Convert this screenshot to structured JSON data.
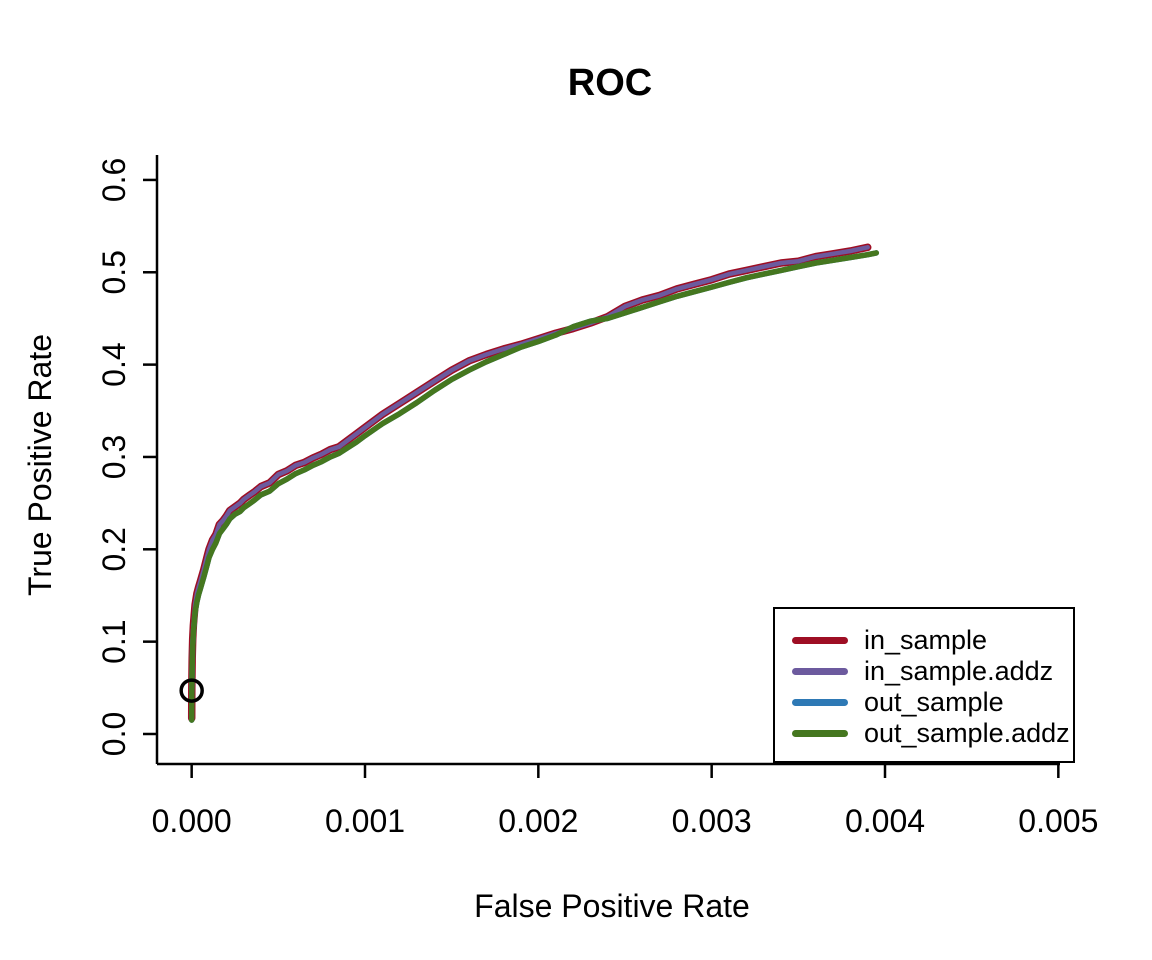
{
  "figure": {
    "background": "#ffffff",
    "text_color": "#000000"
  },
  "chart_data": {
    "type": "line",
    "title": "ROC",
    "xlabel": "False Positive Rate",
    "ylabel": "True Positive Rate",
    "grid": false,
    "xlim": [
      -0.0002,
      0.0052
    ],
    "ylim": [
      -0.0325,
      0.627
    ],
    "xticks": {
      "values": [
        0.0,
        0.001,
        0.002,
        0.003,
        0.004,
        0.005
      ],
      "labels": [
        "0.000",
        "0.001",
        "0.002",
        "0.003",
        "0.004",
        "0.005"
      ]
    },
    "yticks": {
      "values": [
        0.0,
        0.1,
        0.2,
        0.3,
        0.4,
        0.5,
        0.6
      ],
      "labels": [
        "0.0",
        "0.1",
        "0.2",
        "0.3",
        "0.4",
        "0.5",
        "0.6"
      ]
    },
    "legend": {
      "position": "bottomright",
      "border": true
    },
    "marker": {
      "x": 0.0,
      "y": 0.047,
      "shape": "open-circle",
      "color": "#000000"
    },
    "series": [
      {
        "name": "in_sample",
        "color": "#9E0E24",
        "points": [
          [
            0.0,
            0.017
          ],
          [
            1e-06,
            0.05
          ],
          [
            3e-06,
            0.082
          ],
          [
            6e-06,
            0.103
          ],
          [
            1e-05,
            0.118
          ],
          [
            1.5e-05,
            0.13
          ],
          [
            2e-05,
            0.14
          ],
          [
            3e-05,
            0.152
          ],
          [
            4e-05,
            0.159
          ],
          [
            5e-05,
            0.165
          ],
          [
            7e-05,
            0.178
          ],
          [
            9e-05,
            0.193
          ],
          [
            0.0001,
            0.2
          ],
          [
            0.00012,
            0.21
          ],
          [
            0.00014,
            0.216
          ],
          [
            0.00016,
            0.227
          ],
          [
            0.00018,
            0.231
          ],
          [
            0.0002,
            0.236
          ],
          [
            0.00022,
            0.242
          ],
          [
            0.00025,
            0.246
          ],
          [
            0.00028,
            0.25
          ],
          [
            0.0003,
            0.254
          ],
          [
            0.00033,
            0.258
          ],
          [
            0.00036,
            0.262
          ],
          [
            0.0004,
            0.268
          ],
          [
            0.00045,
            0.272
          ],
          [
            0.0005,
            0.281
          ],
          [
            0.00055,
            0.285
          ],
          [
            0.0006,
            0.291
          ],
          [
            0.00065,
            0.294
          ],
          [
            0.0007,
            0.299
          ],
          [
            0.00075,
            0.303
          ],
          [
            0.0008,
            0.308
          ],
          [
            0.00085,
            0.311
          ],
          [
            0.0009,
            0.318
          ],
          [
            0.00095,
            0.325
          ],
          [
            0.001,
            0.332
          ],
          [
            0.0011,
            0.346
          ],
          [
            0.0012,
            0.358
          ],
          [
            0.0013,
            0.37
          ],
          [
            0.0014,
            0.382
          ],
          [
            0.0015,
            0.394
          ],
          [
            0.0016,
            0.404
          ],
          [
            0.0017,
            0.411
          ],
          [
            0.0018,
            0.417
          ],
          [
            0.0019,
            0.422
          ],
          [
            0.002,
            0.428
          ],
          [
            0.0021,
            0.434
          ],
          [
            0.0022,
            0.439
          ],
          [
            0.0023,
            0.445
          ],
          [
            0.0024,
            0.452
          ],
          [
            0.0025,
            0.463
          ],
          [
            0.0026,
            0.47
          ],
          [
            0.0027,
            0.475
          ],
          [
            0.0028,
            0.482
          ],
          [
            0.0029,
            0.487
          ],
          [
            0.003,
            0.492
          ],
          [
            0.0031,
            0.498
          ],
          [
            0.0032,
            0.502
          ],
          [
            0.0033,
            0.506
          ],
          [
            0.0034,
            0.51
          ],
          [
            0.0035,
            0.512
          ],
          [
            0.0036,
            0.517
          ],
          [
            0.0037,
            0.52
          ],
          [
            0.0038,
            0.523
          ],
          [
            0.0039,
            0.527
          ]
        ]
      },
      {
        "name": "in_sample.addz",
        "color": "#6C5A9E",
        "points": [
          [
            0.0,
            0.017
          ],
          [
            1e-06,
            0.05
          ],
          [
            3e-06,
            0.082
          ],
          [
            6e-06,
            0.103
          ],
          [
            1e-05,
            0.118
          ],
          [
            1.5e-05,
            0.13
          ],
          [
            2e-05,
            0.14
          ],
          [
            3e-05,
            0.152
          ],
          [
            4e-05,
            0.159
          ],
          [
            5e-05,
            0.165
          ],
          [
            7e-05,
            0.178
          ],
          [
            9e-05,
            0.193
          ],
          [
            0.0001,
            0.2
          ],
          [
            0.00012,
            0.21
          ],
          [
            0.00014,
            0.216
          ],
          [
            0.00016,
            0.227
          ],
          [
            0.00018,
            0.231
          ],
          [
            0.0002,
            0.236
          ],
          [
            0.00022,
            0.242
          ],
          [
            0.00025,
            0.246
          ],
          [
            0.00028,
            0.25
          ],
          [
            0.0003,
            0.254
          ],
          [
            0.00033,
            0.258
          ],
          [
            0.00036,
            0.262
          ],
          [
            0.0004,
            0.268
          ],
          [
            0.00045,
            0.272
          ],
          [
            0.0005,
            0.281
          ],
          [
            0.00055,
            0.285
          ],
          [
            0.0006,
            0.291
          ],
          [
            0.00065,
            0.294
          ],
          [
            0.0007,
            0.299
          ],
          [
            0.00075,
            0.303
          ],
          [
            0.0008,
            0.308
          ],
          [
            0.00085,
            0.311
          ],
          [
            0.0009,
            0.318
          ],
          [
            0.00095,
            0.325
          ],
          [
            0.001,
            0.332
          ],
          [
            0.0011,
            0.346
          ],
          [
            0.0012,
            0.358
          ],
          [
            0.0013,
            0.37
          ],
          [
            0.0014,
            0.382
          ],
          [
            0.0015,
            0.394
          ],
          [
            0.0016,
            0.404
          ],
          [
            0.0017,
            0.411
          ],
          [
            0.0018,
            0.417
          ],
          [
            0.0019,
            0.422
          ],
          [
            0.002,
            0.428
          ],
          [
            0.0021,
            0.434
          ],
          [
            0.0022,
            0.439
          ],
          [
            0.0023,
            0.445
          ],
          [
            0.0024,
            0.452
          ],
          [
            0.0025,
            0.463
          ],
          [
            0.0026,
            0.47
          ],
          [
            0.0027,
            0.475
          ],
          [
            0.0028,
            0.482
          ],
          [
            0.0029,
            0.487
          ],
          [
            0.003,
            0.492
          ],
          [
            0.0031,
            0.498
          ],
          [
            0.0032,
            0.502
          ],
          [
            0.0033,
            0.506
          ],
          [
            0.0034,
            0.51
          ],
          [
            0.0035,
            0.512
          ],
          [
            0.0036,
            0.517
          ],
          [
            0.0037,
            0.52
          ],
          [
            0.0038,
            0.523
          ],
          [
            0.0039,
            0.527
          ]
        ]
      },
      {
        "name": "out_sample",
        "color": "#2E79B5",
        "points": [
          [
            0.0,
            0.015
          ],
          [
            1e-06,
            0.045
          ],
          [
            3e-06,
            0.075
          ],
          [
            6e-06,
            0.095
          ],
          [
            1e-05,
            0.11
          ],
          [
            1.5e-05,
            0.122
          ],
          [
            2e-05,
            0.132
          ],
          [
            3e-05,
            0.143
          ],
          [
            4e-05,
            0.151
          ],
          [
            5e-05,
            0.157
          ],
          [
            7e-05,
            0.17
          ],
          [
            9e-05,
            0.184
          ],
          [
            0.0001,
            0.191
          ],
          [
            0.00012,
            0.2
          ],
          [
            0.00014,
            0.207
          ],
          [
            0.00016,
            0.217
          ],
          [
            0.00018,
            0.222
          ],
          [
            0.0002,
            0.227
          ],
          [
            0.00022,
            0.233
          ],
          [
            0.00025,
            0.238
          ],
          [
            0.00028,
            0.241
          ],
          [
            0.0003,
            0.245
          ],
          [
            0.00033,
            0.249
          ],
          [
            0.00036,
            0.253
          ],
          [
            0.0004,
            0.259
          ],
          [
            0.00045,
            0.263
          ],
          [
            0.0005,
            0.271
          ],
          [
            0.00055,
            0.276
          ],
          [
            0.0006,
            0.282
          ],
          [
            0.00065,
            0.286
          ],
          [
            0.0007,
            0.291
          ],
          [
            0.00075,
            0.295
          ],
          [
            0.0008,
            0.3
          ],
          [
            0.00085,
            0.304
          ],
          [
            0.0009,
            0.31
          ],
          [
            0.00095,
            0.316
          ],
          [
            0.001,
            0.323
          ],
          [
            0.0011,
            0.336
          ],
          [
            0.0012,
            0.347
          ],
          [
            0.0013,
            0.359
          ],
          [
            0.0014,
            0.372
          ],
          [
            0.0015,
            0.384
          ],
          [
            0.0016,
            0.394
          ],
          [
            0.0017,
            0.403
          ],
          [
            0.0018,
            0.411
          ],
          [
            0.0019,
            0.419
          ],
          [
            0.002,
            0.425
          ],
          [
            0.0021,
            0.432
          ],
          [
            0.0022,
            0.441
          ],
          [
            0.0023,
            0.447
          ],
          [
            0.0024,
            0.45
          ],
          [
            0.0025,
            0.456
          ],
          [
            0.0026,
            0.462
          ],
          [
            0.0027,
            0.468
          ],
          [
            0.0028,
            0.474
          ],
          [
            0.0029,
            0.479
          ],
          [
            0.003,
            0.484
          ],
          [
            0.0031,
            0.489
          ],
          [
            0.0032,
            0.494
          ],
          [
            0.0033,
            0.498
          ],
          [
            0.0034,
            0.502
          ],
          [
            0.0035,
            0.506
          ],
          [
            0.0036,
            0.51
          ],
          [
            0.0037,
            0.513
          ],
          [
            0.0038,
            0.516
          ],
          [
            0.0039,
            0.519
          ],
          [
            0.00395,
            0.521
          ]
        ]
      },
      {
        "name": "out_sample.addz",
        "color": "#45771F",
        "points": [
          [
            0.0,
            0.015
          ],
          [
            1e-06,
            0.045
          ],
          [
            3e-06,
            0.075
          ],
          [
            6e-06,
            0.095
          ],
          [
            1e-05,
            0.11
          ],
          [
            1.5e-05,
            0.122
          ],
          [
            2e-05,
            0.132
          ],
          [
            3e-05,
            0.143
          ],
          [
            4e-05,
            0.151
          ],
          [
            5e-05,
            0.157
          ],
          [
            7e-05,
            0.17
          ],
          [
            9e-05,
            0.184
          ],
          [
            0.0001,
            0.191
          ],
          [
            0.00012,
            0.2
          ],
          [
            0.00014,
            0.207
          ],
          [
            0.00016,
            0.217
          ],
          [
            0.00018,
            0.222
          ],
          [
            0.0002,
            0.227
          ],
          [
            0.00022,
            0.233
          ],
          [
            0.00025,
            0.238
          ],
          [
            0.00028,
            0.241
          ],
          [
            0.0003,
            0.245
          ],
          [
            0.00033,
            0.249
          ],
          [
            0.00036,
            0.253
          ],
          [
            0.0004,
            0.259
          ],
          [
            0.00045,
            0.263
          ],
          [
            0.0005,
            0.271
          ],
          [
            0.00055,
            0.276
          ],
          [
            0.0006,
            0.282
          ],
          [
            0.00065,
            0.286
          ],
          [
            0.0007,
            0.291
          ],
          [
            0.00075,
            0.295
          ],
          [
            0.0008,
            0.3
          ],
          [
            0.00085,
            0.304
          ],
          [
            0.0009,
            0.31
          ],
          [
            0.00095,
            0.316
          ],
          [
            0.001,
            0.323
          ],
          [
            0.0011,
            0.336
          ],
          [
            0.0012,
            0.347
          ],
          [
            0.0013,
            0.359
          ],
          [
            0.0014,
            0.372
          ],
          [
            0.0015,
            0.384
          ],
          [
            0.0016,
            0.394
          ],
          [
            0.0017,
            0.403
          ],
          [
            0.0018,
            0.411
          ],
          [
            0.0019,
            0.419
          ],
          [
            0.002,
            0.425
          ],
          [
            0.0021,
            0.432
          ],
          [
            0.0022,
            0.441
          ],
          [
            0.0023,
            0.447
          ],
          [
            0.0024,
            0.45
          ],
          [
            0.0025,
            0.456
          ],
          [
            0.0026,
            0.462
          ],
          [
            0.0027,
            0.468
          ],
          [
            0.0028,
            0.474
          ],
          [
            0.0029,
            0.479
          ],
          [
            0.003,
            0.484
          ],
          [
            0.0031,
            0.489
          ],
          [
            0.0032,
            0.494
          ],
          [
            0.0033,
            0.498
          ],
          [
            0.0034,
            0.502
          ],
          [
            0.0035,
            0.506
          ],
          [
            0.0036,
            0.51
          ],
          [
            0.0037,
            0.513
          ],
          [
            0.0038,
            0.516
          ],
          [
            0.0039,
            0.519
          ],
          [
            0.00395,
            0.521
          ]
        ]
      }
    ]
  }
}
